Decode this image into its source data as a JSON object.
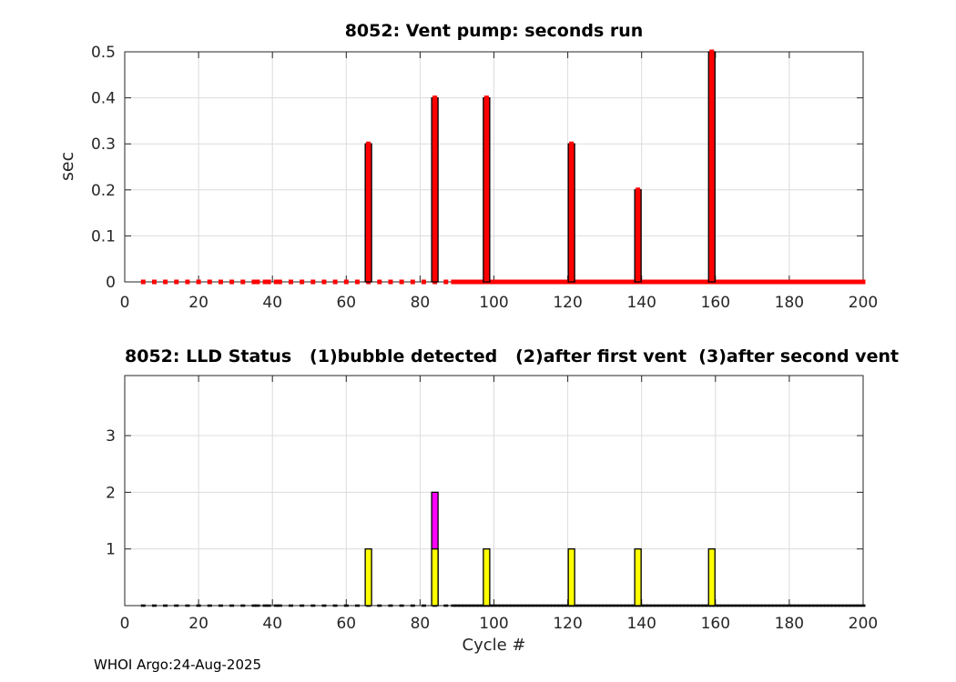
{
  "figure": {
    "background": "#ffffff",
    "footer": "WHOI Argo:24-Aug-2025"
  },
  "colors": {
    "axis": "#262626",
    "grid": "#dcdcdc",
    "tick_label": "#262626",
    "red": "#ff0000",
    "yellow": "#ffff00",
    "magenta": "#ff00ff",
    "black": "#000000"
  },
  "chart_data": [
    {
      "type": "bar",
      "title": "8052: Vent pump: seconds run",
      "ylabel": "sec",
      "xlabel": "",
      "xlim": [
        0,
        200
      ],
      "ylim": [
        0,
        0.5
      ],
      "grid": true,
      "box": true,
      "legend": "none",
      "xtick_values": [
        0,
        20,
        40,
        60,
        80,
        100,
        120,
        140,
        160,
        180,
        200
      ],
      "xtick_labels": [
        "0",
        "20",
        "40",
        "60",
        "80",
        "100",
        "120",
        "140",
        "160",
        "180",
        "200"
      ],
      "ytick_values": [
        0,
        0.1,
        0.2,
        0.3,
        0.4,
        0.5
      ],
      "ytick_labels": [
        "0",
        "0.1",
        "0.2",
        "0.3",
        "0.4",
        "0.5"
      ],
      "series": [
        {
          "name": "vent-pump-seconds",
          "color": "#ff0000",
          "edge": "#000000",
          "top_marker": true,
          "cycles": [
            66,
            84,
            98,
            121,
            139,
            159
          ],
          "values": [
            0.3,
            0.4,
            0.4,
            0.3,
            0.2,
            0.5
          ]
        }
      ],
      "zero_markers": {
        "color": "#ff0000",
        "shape": "square",
        "cycle_spec": [
          {
            "from": 5,
            "to": 32,
            "step": 3
          },
          {
            "list": [
              35,
              36,
              38,
              39,
              41,
              42
            ]
          },
          {
            "from": 45,
            "to": 87,
            "step": 3
          },
          {
            "from": 89,
            "to": 200,
            "step": 1
          }
        ]
      }
    },
    {
      "type": "bar",
      "title": "8052: LLD Status   (1)bubble detected   (2)after first vent  (3)after second vent",
      "ylabel": "",
      "xlabel": "Cycle #",
      "xlim": [
        0,
        200
      ],
      "ylim": [
        0,
        4.06
      ],
      "grid": true,
      "box": true,
      "legend": "none",
      "xtick_values": [
        0,
        20,
        40,
        60,
        80,
        100,
        120,
        140,
        160,
        180,
        200
      ],
      "xtick_labels": [
        "0",
        "20",
        "40",
        "60",
        "80",
        "100",
        "120",
        "140",
        "160",
        "180",
        "200"
      ],
      "ytick_values": [
        1,
        2,
        3
      ],
      "ytick_labels": [
        "1",
        "2",
        "3"
      ],
      "series": [
        {
          "name": "lld-2-after-first-vent",
          "color": "#ff00ff",
          "edge": "#000000",
          "top_marker": false,
          "cycles": [
            84
          ],
          "values": [
            2
          ]
        },
        {
          "name": "lld-1-bubble-detected",
          "color": "#ffff00",
          "edge": "#000000",
          "top_marker": false,
          "cycles": [
            66,
            84,
            98,
            121,
            139,
            159
          ],
          "values": [
            1,
            1,
            1,
            1,
            1,
            1
          ]
        }
      ],
      "zero_markers": {
        "color": "#000000",
        "shape": "dash",
        "cycle_spec": [
          {
            "from": 5,
            "to": 32,
            "step": 3
          },
          {
            "list": [
              35,
              36,
              38,
              39,
              41,
              42
            ]
          },
          {
            "from": 45,
            "to": 87,
            "step": 3
          },
          {
            "from": 89,
            "to": 200,
            "step": 1
          }
        ]
      }
    }
  ]
}
